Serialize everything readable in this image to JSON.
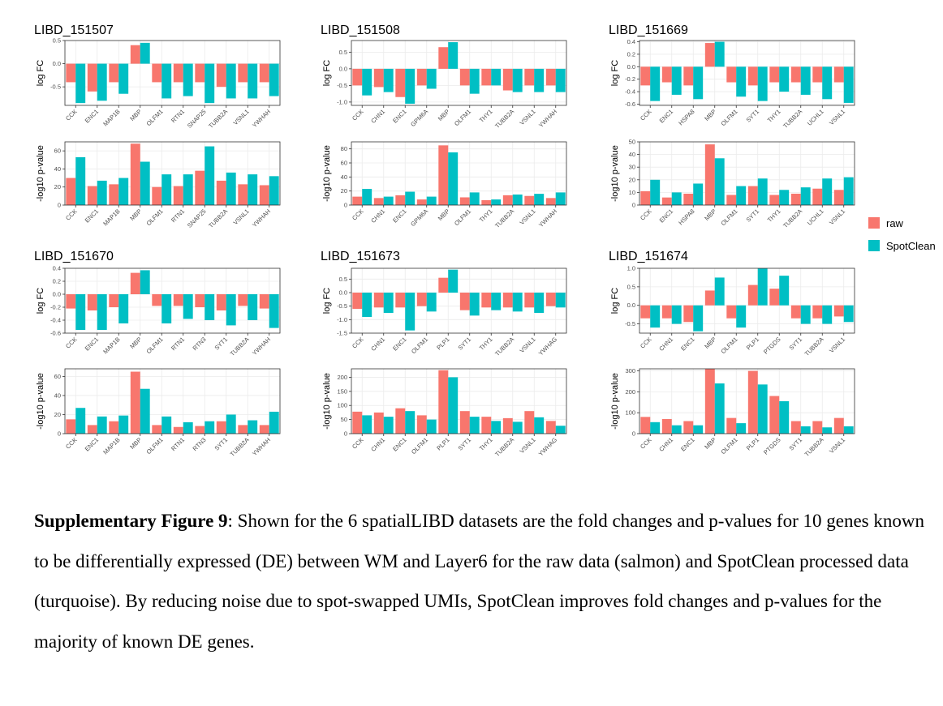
{
  "colors": {
    "raw": "#F8766D",
    "spotclean": "#00BFC4",
    "grid": "#ebebeb",
    "border": "#333333"
  },
  "legend": {
    "items": [
      {
        "label": "raw",
        "color": "#F8766D"
      },
      {
        "label": "SpotClean",
        "color": "#00BFC4"
      }
    ]
  },
  "caption": {
    "bold": "Supplementary Figure 9",
    "text": ": Shown for the 6 spatialLIBD datasets are the fold changes and p-values for 10 genes known to be differentially expressed (DE) between WM and Layer6 for the raw data (salmon) and SpotClean processed data (turquoise).  By reducing noise due to spot-swapped UMIs, SpotClean improves fold changes and p-values for the majority of known DE genes."
  },
  "chart_data": [
    {
      "title": "LIBD_151507",
      "type": "bar",
      "categories": [
        "CCK",
        "ENC1",
        "MAP1B",
        "MBP",
        "OLFM1",
        "RTN1",
        "SNAP25",
        "TUBB2A",
        "VSNL1",
        "YWHAH"
      ],
      "fc": {
        "ylabel": "log FC",
        "ylim": [
          -0.9,
          0.5
        ],
        "ticks": [
          -0.5,
          0.0,
          0.5
        ],
        "tick_labels": [
          "-0.5",
          "0.0",
          "0.5"
        ],
        "series": [
          {
            "name": "raw",
            "values": [
              -0.4,
              -0.6,
              -0.4,
              0.4,
              -0.4,
              -0.4,
              -0.4,
              -0.5,
              -0.4,
              -0.4
            ]
          },
          {
            "name": "SpotClean",
            "values": [
              -0.85,
              -0.8,
              -0.65,
              0.45,
              -0.75,
              -0.7,
              -0.85,
              -0.75,
              -0.75,
              -0.7
            ]
          }
        ]
      },
      "pv": {
        "ylabel": "-log10 p-value",
        "ylim": [
          0,
          70
        ],
        "ticks": [
          0,
          20,
          40,
          60
        ],
        "tick_labels": [
          "0",
          "20",
          "40",
          "60"
        ],
        "series": [
          {
            "name": "raw",
            "values": [
              30,
              21,
              23,
              68,
              20,
              21,
              38,
              27,
              23,
              22
            ]
          },
          {
            "name": "SpotClean",
            "values": [
              53,
              27,
              30,
              48,
              34,
              34,
              65,
              36,
              34,
              32
            ]
          }
        ]
      }
    },
    {
      "title": "LIBD_151508",
      "type": "bar",
      "categories": [
        "CCK",
        "CHN1",
        "ENC1",
        "GPM6A",
        "MBP",
        "OLFM1",
        "THY1",
        "TUBB2A",
        "VSNL1",
        "YWHAH"
      ],
      "fc": {
        "ylabel": "log FC",
        "ylim": [
          -1.1,
          0.85
        ],
        "ticks": [
          -1.0,
          -0.5,
          0.0,
          0.5
        ],
        "tick_labels": [
          "-1.0",
          "-0.5",
          "0.0",
          "0.5"
        ],
        "series": [
          {
            "name": "raw",
            "values": [
              -0.5,
              -0.55,
              -0.85,
              -0.5,
              0.65,
              -0.5,
              -0.5,
              -0.65,
              -0.5,
              -0.5
            ]
          },
          {
            "name": "SpotClean",
            "values": [
              -0.8,
              -0.7,
              -1.05,
              -0.6,
              0.8,
              -0.75,
              -0.5,
              -0.7,
              -0.7,
              -0.7
            ]
          }
        ]
      },
      "pv": {
        "ylabel": "-log10 p-value",
        "ylim": [
          0,
          90
        ],
        "ticks": [
          0,
          20,
          40,
          60,
          80
        ],
        "tick_labels": [
          "0",
          "20",
          "40",
          "60",
          "80"
        ],
        "series": [
          {
            "name": "raw",
            "values": [
              12,
              10,
              14,
              8,
              85,
              11,
              7,
              14,
              13,
              10
            ]
          },
          {
            "name": "SpotClean",
            "values": [
              23,
              12,
              19,
              12,
              75,
              18,
              8,
              15,
              16,
              18
            ]
          }
        ]
      }
    },
    {
      "title": "LIBD_151669",
      "type": "bar",
      "categories": [
        "CCK",
        "ENC1",
        "HSPA8",
        "MBP",
        "OLFM1",
        "SYT1",
        "THY1",
        "TUBB2A",
        "UCHL1",
        "VSNL1"
      ],
      "fc": {
        "ylabel": "log FC",
        "ylim": [
          -0.62,
          0.42
        ],
        "ticks": [
          -0.6,
          -0.4,
          -0.2,
          0.0,
          0.2,
          0.4
        ],
        "tick_labels": [
          "-0.6",
          "-0.4",
          "-0.2",
          "0.0",
          "0.2",
          "0.4"
        ],
        "series": [
          {
            "name": "raw",
            "values": [
              -0.3,
              -0.25,
              -0.3,
              0.38,
              -0.25,
              -0.3,
              -0.25,
              -0.25,
              -0.25,
              -0.25
            ]
          },
          {
            "name": "SpotClean",
            "values": [
              -0.55,
              -0.45,
              -0.52,
              0.4,
              -0.48,
              -0.55,
              -0.4,
              -0.45,
              -0.52,
              -0.58
            ]
          }
        ]
      },
      "pv": {
        "ylabel": "-log10 p-value",
        "ylim": [
          0,
          50
        ],
        "ticks": [
          0,
          10,
          20,
          30,
          40,
          50
        ],
        "tick_labels": [
          "0",
          "10",
          "20",
          "30",
          "40",
          "50"
        ],
        "series": [
          {
            "name": "raw",
            "values": [
              11,
              6,
              9,
              48,
              8,
              15,
              8,
              9,
              13,
              12
            ]
          },
          {
            "name": "SpotClean",
            "values": [
              20,
              10,
              17,
              37,
              15,
              21,
              12,
              14,
              21,
              22
            ]
          }
        ]
      }
    },
    {
      "title": "LIBD_151670",
      "type": "bar",
      "categories": [
        "CCK",
        "ENC1",
        "MAP1B",
        "MBP",
        "OLFM1",
        "RTN1",
        "RTN3",
        "SYT1",
        "TUBB2A",
        "YWHAH"
      ],
      "fc": {
        "ylabel": "log FC",
        "ylim": [
          -0.6,
          0.4
        ],
        "ticks": [
          -0.6,
          -0.4,
          -0.2,
          0.0,
          0.2,
          0.4
        ],
        "tick_labels": [
          "-0.6",
          "-0.4",
          "-0.2",
          "0.0",
          "0.2",
          "0.4"
        ],
        "series": [
          {
            "name": "raw",
            "values": [
              -0.22,
              -0.25,
              -0.2,
              0.33,
              -0.18,
              -0.18,
              -0.2,
              -0.25,
              -0.18,
              -0.22
            ]
          },
          {
            "name": "SpotClean",
            "values": [
              -0.55,
              -0.55,
              -0.45,
              0.37,
              -0.45,
              -0.38,
              -0.4,
              -0.48,
              -0.4,
              -0.52
            ]
          }
        ]
      },
      "pv": {
        "ylabel": "-log10 p-value",
        "ylim": [
          0,
          68
        ],
        "ticks": [
          0,
          20,
          40,
          60
        ],
        "tick_labels": [
          "0",
          "20",
          "40",
          "60"
        ],
        "series": [
          {
            "name": "raw",
            "values": [
              15,
              9,
              13,
              65,
              9,
              7,
              8,
              13,
              9,
              9
            ]
          },
          {
            "name": "SpotClean",
            "values": [
              27,
              18,
              19,
              47,
              18,
              12,
              13,
              20,
              14,
              23
            ]
          }
        ]
      }
    },
    {
      "title": "LIBD_151673",
      "type": "bar",
      "categories": [
        "CCK",
        "CHN1",
        "ENC1",
        "OLFM1",
        "PLP1",
        "SYT1",
        "THY1",
        "TUBB2A",
        "VSNL1",
        "YWHAG"
      ],
      "fc": {
        "ylabel": "log FC",
        "ylim": [
          -1.5,
          0.9
        ],
        "ticks": [
          -1.5,
          -1.0,
          -0.5,
          0.0,
          0.5
        ],
        "tick_labels": [
          "-1.5",
          "-1.0",
          "-0.5",
          "0.0",
          "0.5"
        ],
        "series": [
          {
            "name": "raw",
            "values": [
              -0.6,
              -0.55,
              -0.55,
              -0.5,
              0.55,
              -0.65,
              -0.55,
              -0.55,
              -0.55,
              -0.5
            ]
          },
          {
            "name": "SpotClean",
            "values": [
              -0.9,
              -0.75,
              -1.4,
              -0.7,
              0.85,
              -0.85,
              -0.65,
              -0.7,
              -0.75,
              -0.55
            ]
          }
        ]
      },
      "pv": {
        "ylabel": "-log10 p-value",
        "ylim": [
          0,
          230
        ],
        "ticks": [
          0,
          50,
          100,
          150,
          200
        ],
        "tick_labels": [
          "0",
          "50",
          "100",
          "150",
          "200"
        ],
        "series": [
          {
            "name": "raw",
            "values": [
              78,
              75,
              90,
              65,
              225,
              80,
              60,
              55,
              80,
              45
            ]
          },
          {
            "name": "SpotClean",
            "values": [
              65,
              60,
              80,
              50,
              200,
              60,
              45,
              42,
              58,
              28
            ]
          }
        ]
      }
    },
    {
      "title": "LIBD_151674",
      "type": "bar",
      "categories": [
        "CCK",
        "CHN1",
        "ENC1",
        "MBP",
        "OLFM1",
        "PLP1",
        "PTGDS",
        "SYT1",
        "TUBB2A",
        "VSNL1"
      ],
      "fc": {
        "ylabel": "log FC",
        "ylim": [
          -0.75,
          1.0
        ],
        "ticks": [
          -0.5,
          0.0,
          0.5,
          1.0
        ],
        "tick_labels": [
          "-0.5",
          "0.0",
          "0.5",
          "1.0"
        ],
        "series": [
          {
            "name": "raw",
            "values": [
              -0.35,
              -0.35,
              -0.45,
              0.4,
              -0.35,
              0.55,
              0.45,
              -0.35,
              -0.35,
              -0.3
            ]
          },
          {
            "name": "SpotClean",
            "values": [
              -0.6,
              -0.5,
              -0.7,
              0.75,
              -0.6,
              1.0,
              0.8,
              -0.5,
              -0.5,
              -0.45
            ]
          }
        ]
      },
      "pv": {
        "ylabel": "-log10 p-value",
        "ylim": [
          0,
          310
        ],
        "ticks": [
          0,
          100,
          200,
          300
        ],
        "tick_labels": [
          "0",
          "100",
          "200",
          "300"
        ],
        "series": [
          {
            "name": "raw",
            "values": [
              80,
              70,
              60,
              310,
              75,
              300,
              180,
              60,
              60,
              75
            ]
          },
          {
            "name": "SpotClean",
            "values": [
              55,
              40,
              40,
              240,
              50,
              235,
              155,
              35,
              30,
              35
            ]
          }
        ]
      }
    }
  ]
}
